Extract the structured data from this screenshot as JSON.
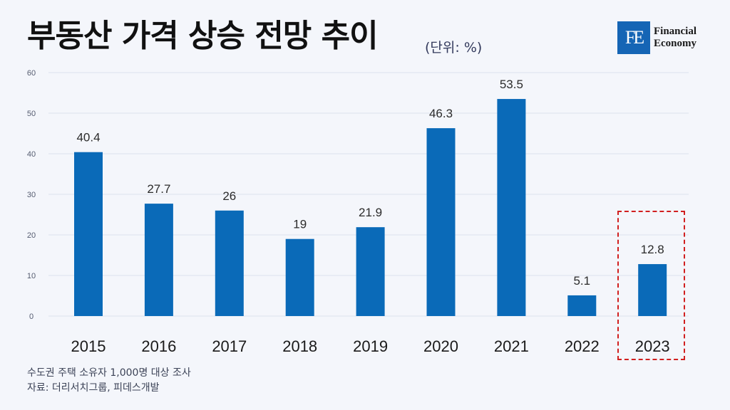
{
  "title": "부동산 가격 상승 전망 추이",
  "unit": "(단위: %)",
  "logo": {
    "mark": "FE",
    "line1": "Financial",
    "line2": "Economy"
  },
  "source": {
    "line1": "수도권 주택 소유자 1,000명 대상 조사",
    "line2": "자료: 더리서치그룹, 피데스개발"
  },
  "colors": {
    "bar": "#0a6ab8",
    "highlight": "#d11f1f",
    "grid": "#dde2ee"
  },
  "chart_data": {
    "type": "bar",
    "categories": [
      "2015",
      "2016",
      "2017",
      "2018",
      "2019",
      "2020",
      "2021",
      "2022",
      "2023"
    ],
    "values": [
      40.4,
      27.7,
      26,
      19,
      21.9,
      46.3,
      53.5,
      5.1,
      12.8
    ],
    "value_labels": [
      "40.4",
      "27.7",
      "26",
      "19",
      "21.9",
      "46.3",
      "53.5",
      "5.1",
      "12.8"
    ],
    "ylim": [
      0,
      60
    ],
    "yticks": [
      "0",
      "10",
      "20",
      "30",
      "40",
      "50",
      "60"
    ],
    "grid": true,
    "highlighted_category": "2023"
  }
}
